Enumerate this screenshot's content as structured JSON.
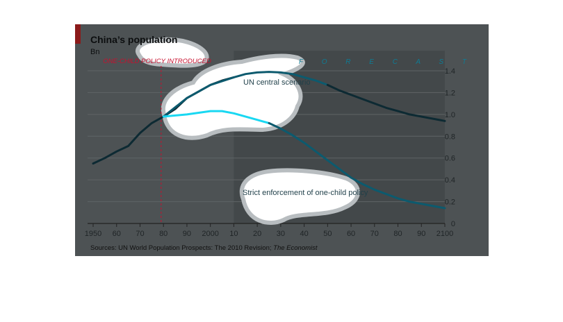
{
  "chart_data": {
    "type": "line",
    "title": "China’s population",
    "ylabel": "Bn",
    "xlim": [
      1950,
      2100
    ],
    "ylim": [
      0,
      1.4
    ],
    "y_ticks": [
      0,
      0.2,
      0.4,
      0.6,
      0.8,
      1.0,
      1.2,
      1.4
    ],
    "y_tick_labels": [
      "0",
      "0.2",
      "0.4",
      "0.6",
      "0.8",
      "1.0",
      "1.2",
      "1.4"
    ],
    "x_ticks": [
      1950,
      1960,
      1970,
      1980,
      1990,
      2000,
      2010,
      2020,
      2030,
      2040,
      2050,
      2060,
      2070,
      2080,
      2090,
      2100
    ],
    "x_tick_labels": [
      "1950",
      "60",
      "70",
      "80",
      "90",
      "2000",
      "10",
      "20",
      "30",
      "40",
      "50",
      "60",
      "70",
      "80",
      "90",
      "2100"
    ],
    "grid": true,
    "forecast_start": 2010,
    "forecast_label": "F O R E C A S T",
    "policy_year": 1979,
    "policy_label": "ONE-CHILD POLICY INTRODUCED",
    "series": [
      {
        "name": "",
        "color": "#0d2a33",
        "x": [
          1950,
          1955,
          1960,
          1965,
          1970,
          1975,
          1980,
          1985,
          1990,
          1995,
          2000,
          2005,
          2010
        ],
        "y": [
          0.55,
          0.6,
          0.66,
          0.71,
          0.83,
          0.92,
          0.98,
          1.05,
          1.15,
          1.21,
          1.27,
          1.31,
          1.34
        ]
      },
      {
        "name": "UN central scenario",
        "color": "#0c5a6e",
        "x": [
          1980,
          1990,
          2000,
          2010,
          2015,
          2020,
          2025,
          2030,
          2035,
          2040,
          2045,
          2050
        ],
        "y": [
          0.98,
          1.15,
          1.27,
          1.34,
          1.37,
          1.385,
          1.39,
          1.385,
          1.37,
          1.34,
          1.31,
          1.27
        ]
      },
      {
        "name": "",
        "color": "#0d2a33",
        "x": [
          2050,
          2055,
          2060,
          2065,
          2070,
          2075,
          2080,
          2085,
          2090,
          2095,
          2100
        ],
        "y": [
          1.27,
          1.22,
          1.18,
          1.14,
          1.1,
          1.06,
          1.03,
          1.0,
          0.98,
          0.96,
          0.94
        ]
      },
      {
        "name": "Strict enforcement of one-child policy",
        "color": "#19d8f2",
        "x": [
          1980,
          1990,
          2000,
          2005,
          2010,
          2020,
          2025
        ],
        "y": [
          0.98,
          1.0,
          1.03,
          1.03,
          1.01,
          0.95,
          0.92
        ]
      },
      {
        "name": "",
        "color": "#0c5a6e",
        "x": [
          2025,
          2030,
          2035,
          2040,
          2045,
          2050,
          2055,
          2060,
          2065,
          2070,
          2075,
          2080,
          2085,
          2090,
          2095,
          2100
        ],
        "y": [
          0.92,
          0.87,
          0.81,
          0.74,
          0.66,
          0.58,
          0.5,
          0.42,
          0.36,
          0.31,
          0.27,
          0.23,
          0.2,
          0.18,
          0.16,
          0.14
        ]
      }
    ],
    "source": "Sources: UN World Population Prospects: The 2010 Revision; ",
    "source_italic": "The Economist"
  },
  "colors": {
    "panel": "#4d5254",
    "forecast_shade": "#43484a",
    "accent": "#8b1a1a",
    "bubble": "#ffffff",
    "bubble_edge": "#b8bdc0"
  }
}
